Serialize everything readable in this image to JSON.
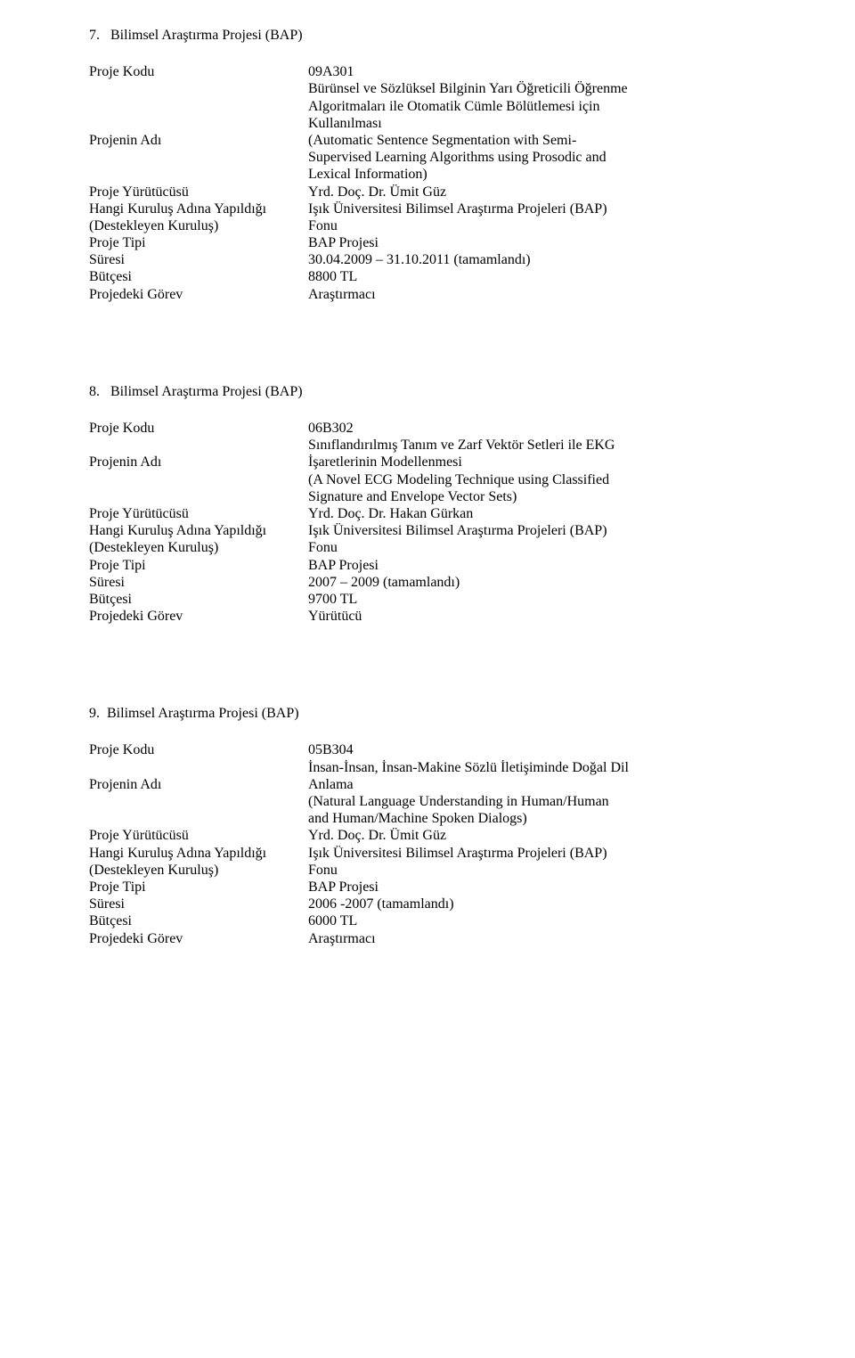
{
  "sections": [
    {
      "number": "7.",
      "heading": "Bilimsel Araştırma Projesi (BAP)",
      "rows": {
        "row0": {
          "label": "Proje Kodu",
          "value": "09A301"
        },
        "row1": {
          "label": "Projenin Adı",
          "value_l1": "Bürünsel ve Sözlüksel Bilginin Yarı Öğreticili Öğrenme",
          "value_l2": "Algoritmaları ile Otomatik Cümle Bölütlemesi için",
          "value_l3": "Kullanılması",
          "value_l4": "(Automatic Sentence Segmentation with Semi-",
          "value_l5": "Supervised Learning Algorithms using Prosodic and",
          "value_l6": "Lexical Information)"
        },
        "row2": {
          "label": "Proje Yürütücüsü",
          "value": "Yrd. Doç. Dr. Ümit Güz"
        },
        "row3": {
          "label_l1": "Hangi Kuruluş Adına Yapıldığı",
          "label_l2": "(Destekleyen Kuruluş)",
          "value_l1": "Işık Üniversitesi Bilimsel Araştırma Projeleri (BAP)",
          "value_l2": "Fonu"
        },
        "row4": {
          "label": "Proje Tipi",
          "value": "BAP Projesi"
        },
        "row5": {
          "label": "Süresi",
          "value": "30.04.2009 – 31.10.2011 (tamamlandı)"
        },
        "row6": {
          "label": "Bütçesi",
          "value": "8800 TL"
        },
        "row7": {
          "label": "Projedeki Görev",
          "value": "Araştırmacı"
        }
      }
    },
    {
      "number": "8.",
      "heading": "Bilimsel Araştırma Projesi (BAP)",
      "rows": {
        "row0": {
          "label": "Proje Kodu",
          "value": "06B302"
        },
        "row1": {
          "label": "Projenin Adı",
          "value_l1": "Sınıflandırılmış Tanım ve Zarf Vektör Setleri ile EKG",
          "value_l2": "İşaretlerinin Modellenmesi",
          "value_l3": "(A Novel ECG Modeling Technique using Classified",
          "value_l4": "Signature and Envelope Vector Sets)"
        },
        "row2": {
          "label": "Proje Yürütücüsü",
          "value": "Yrd. Doç. Dr. Hakan Gürkan"
        },
        "row3": {
          "label_l1": "Hangi Kuruluş Adına Yapıldığı",
          "label_l2": "(Destekleyen Kuruluş)",
          "value_l1": "Işık Üniversitesi Bilimsel Araştırma Projeleri (BAP)",
          "value_l2": "Fonu"
        },
        "row4": {
          "label": "Proje Tipi",
          "value": "BAP Projesi"
        },
        "row5": {
          "label": "Süresi",
          "value": "2007 – 2009 (tamamlandı)"
        },
        "row6": {
          "label": "Bütçesi",
          "value": "9700 TL"
        },
        "row7": {
          "label": "Projedeki Görev",
          "value": "Yürütücü"
        }
      }
    },
    {
      "number": "9.",
      "heading": "Bilimsel Araştırma Projesi (BAP)",
      "rows": {
        "row0": {
          "label": "Proje Kodu",
          "value": "05B304"
        },
        "row1": {
          "label": "Projenin Adı",
          "value_l1": "İnsan-İnsan, İnsan-Makine Sözlü İletişiminde Doğal Dil",
          "value_l2": "Anlama",
          "value_l3": "(Natural Language Understanding in Human/Human",
          "value_l4": "and Human/Machine Spoken Dialogs)"
        },
        "row2": {
          "label": "Proje Yürütücüsü",
          "value": "Yrd. Doç. Dr. Ümit Güz"
        },
        "row3": {
          "label_l1": "Hangi Kuruluş Adına Yapıldığı",
          "label_l2": "(Destekleyen Kuruluş)",
          "value_l1": "Işık Üniversitesi Bilimsel Araştırma Projeleri (BAP)",
          "value_l2": "Fonu"
        },
        "row4": {
          "label": "Proje Tipi",
          "value": "BAP Projesi"
        },
        "row5": {
          "label": "Süresi",
          "value": "2006 -2007 (tamamlandı)"
        },
        "row6": {
          "label": "Bütçesi",
          "value": "6000 TL"
        },
        "row7": {
          "label": "Projedeki Görev",
          "value": "Araştırmacı"
        }
      }
    }
  ]
}
